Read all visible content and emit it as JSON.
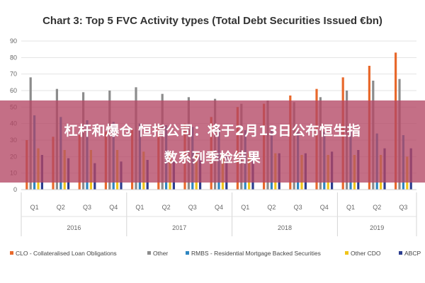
{
  "overlay": {
    "line1": "杠杆和爆仓 恒指公司：将于2月13日公布恒生指",
    "line2": "数系列季检结果"
  },
  "chart_data": {
    "type": "bar",
    "title": "Chart 3: Top 5 FVC Activity types (Total Debt Securities Issued €bn)",
    "xlabel": "",
    "ylabel": "",
    "ylim": [
      0,
      90
    ],
    "yticks": [
      0,
      10,
      20,
      30,
      40,
      50,
      60,
      70,
      80,
      90
    ],
    "grid": true,
    "legend_position": "bottom",
    "categories": [
      "Q1",
      "Q2",
      "Q3",
      "Q4",
      "Q1",
      "Q2",
      "Q3",
      "Q4",
      "Q1",
      "Q2",
      "Q3",
      "Q4",
      "Q1",
      "Q2",
      "Q3"
    ],
    "year_groups": [
      {
        "label": "2016",
        "count": 4
      },
      {
        "label": "2017",
        "count": 4
      },
      {
        "label": "2018",
        "count": 4
      },
      {
        "label": "2019",
        "count": 3
      }
    ],
    "series": [
      {
        "name": "CLO - Collateralised Loan Obligations",
        "color": "#e8692c",
        "values": [
          30,
          32,
          33,
          35,
          37,
          38,
          40,
          44,
          50,
          52,
          57,
          61,
          68,
          75,
          83
        ]
      },
      {
        "name": "Other",
        "color": "#8c8c8c",
        "values": [
          68,
          61,
          59,
          60,
          62,
          58,
          56,
          55,
          52,
          54,
          53,
          56,
          60,
          66,
          67
        ]
      },
      {
        "name": "RMBS - Residential Mortgage Backed Securities",
        "color": "#2e86c1",
        "values": [
          45,
          44,
          42,
          41,
          40,
          39,
          38,
          37,
          36,
          36,
          35,
          35,
          35,
          34,
          33
        ]
      },
      {
        "name": "Other CDO",
        "color": "#f0c419",
        "values": [
          25,
          24,
          24,
          24,
          23,
          23,
          22,
          22,
          22,
          22,
          21,
          21,
          21,
          21,
          20
        ]
      },
      {
        "name": "ABCP",
        "color": "#2c3e8f",
        "values": [
          21,
          19,
          16,
          17,
          18,
          19,
          20,
          21,
          22,
          22,
          22,
          23,
          24,
          25,
          25
        ]
      }
    ]
  }
}
